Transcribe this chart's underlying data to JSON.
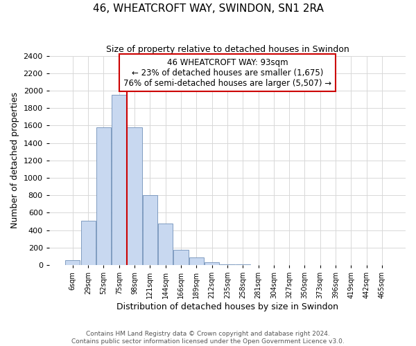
{
  "title": "46, WHEATCROFT WAY, SWINDON, SN1 2RA",
  "subtitle": "Size of property relative to detached houses in Swindon",
  "xlabel": "Distribution of detached houses by size in Swindon",
  "ylabel": "Number of detached properties",
  "bar_color": "#c8d8f0",
  "bar_edge_color": "#7090b8",
  "categories": [
    "6sqm",
    "29sqm",
    "52sqm",
    "75sqm",
    "98sqm",
    "121sqm",
    "144sqm",
    "166sqm",
    "189sqm",
    "212sqm",
    "235sqm",
    "258sqm",
    "281sqm",
    "304sqm",
    "327sqm",
    "350sqm",
    "373sqm",
    "396sqm",
    "419sqm",
    "442sqm",
    "465sqm"
  ],
  "values": [
    55,
    505,
    1580,
    1950,
    1580,
    805,
    475,
    175,
    90,
    35,
    5,
    5,
    0,
    0,
    0,
    0,
    0,
    0,
    0,
    0,
    0
  ],
  "ylim": [
    0,
    2400
  ],
  "yticks": [
    0,
    200,
    400,
    600,
    800,
    1000,
    1200,
    1400,
    1600,
    1800,
    2000,
    2200,
    2400
  ],
  "annotation_title": "46 WHEATCROFT WAY: 93sqm",
  "annotation_line1": "← 23% of detached houses are smaller (1,675)",
  "annotation_line2": "76% of semi-detached houses are larger (5,507) →",
  "vline_index": 3.5,
  "vline_color": "#cc0000",
  "box_color": "#cc0000",
  "footnote1": "Contains HM Land Registry data © Crown copyright and database right 2024.",
  "footnote2": "Contains public sector information licensed under the Open Government Licence v3.0.",
  "background_color": "#ffffff",
  "grid_color": "#d8d8d8"
}
